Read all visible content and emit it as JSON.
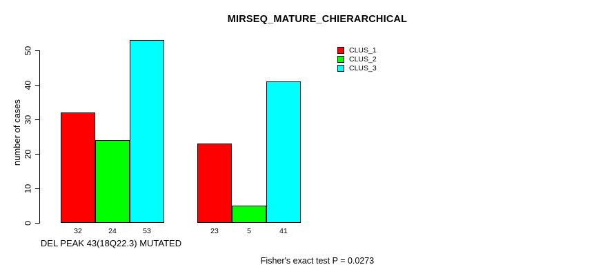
{
  "page": {
    "background": "#ffffff",
    "text_color": "#000000"
  },
  "chart_data": {
    "type": "bar",
    "title": "MIRSEQ_MATURE_CHIERARCHICAL",
    "ylabel": "number of cases",
    "footer": "Fisher's exact test P = 0.0273",
    "series": [
      {
        "name": "CLUS_1",
        "color": "#ff0000"
      },
      {
        "name": "CLUS_2",
        "color": "#00ff00"
      },
      {
        "name": "CLUS_3",
        "color": "#00ffff"
      }
    ],
    "groups": [
      {
        "label": "DEL PEAK 43(18Q22.3) MUTATED",
        "values": [
          32,
          24,
          53
        ]
      },
      {
        "label": "",
        "values": [
          23,
          5,
          41
        ]
      }
    ],
    "value_labels": [
      "32",
      "24",
      "53",
      "23",
      "5",
      "41"
    ],
    "yticks": [
      0,
      10,
      20,
      30,
      40,
      50
    ],
    "ylim": [
      0,
      53
    ],
    "grid": false,
    "legend_position": "top-right",
    "bar_border_color": "#000000"
  }
}
